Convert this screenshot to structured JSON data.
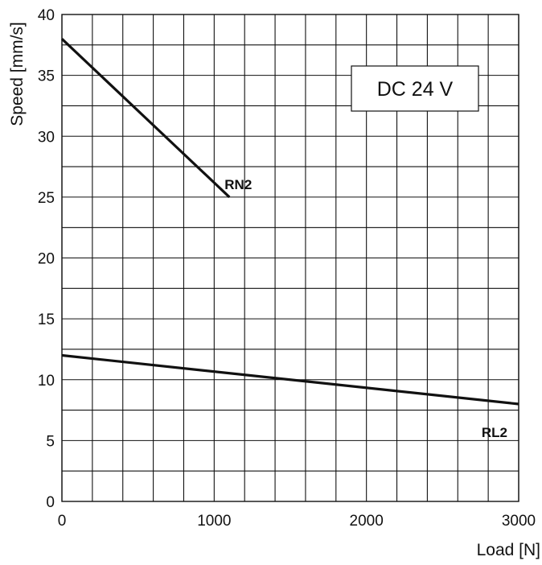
{
  "chart_data": {
    "type": "line",
    "title": "",
    "xlabel": "Load [N]",
    "ylabel": "Speed [mm/s]",
    "xlim": [
      0,
      3000
    ],
    "ylim": [
      0,
      40
    ],
    "x_ticks": [
      "0",
      "1000",
      "2000",
      "3000"
    ],
    "y_ticks": [
      "0",
      "5",
      "10",
      "15",
      "20",
      "25",
      "30",
      "35",
      "40"
    ],
    "grid": true,
    "badge": "DC 24 V",
    "series": [
      {
        "name": "RN2",
        "x": [
          0,
          1100
        ],
        "y": [
          38,
          25
        ]
      },
      {
        "name": "RL2",
        "x": [
          0,
          3000
        ],
        "y": [
          12,
          8
        ]
      }
    ],
    "line_color": "#111111",
    "grid_color": "#111111"
  }
}
